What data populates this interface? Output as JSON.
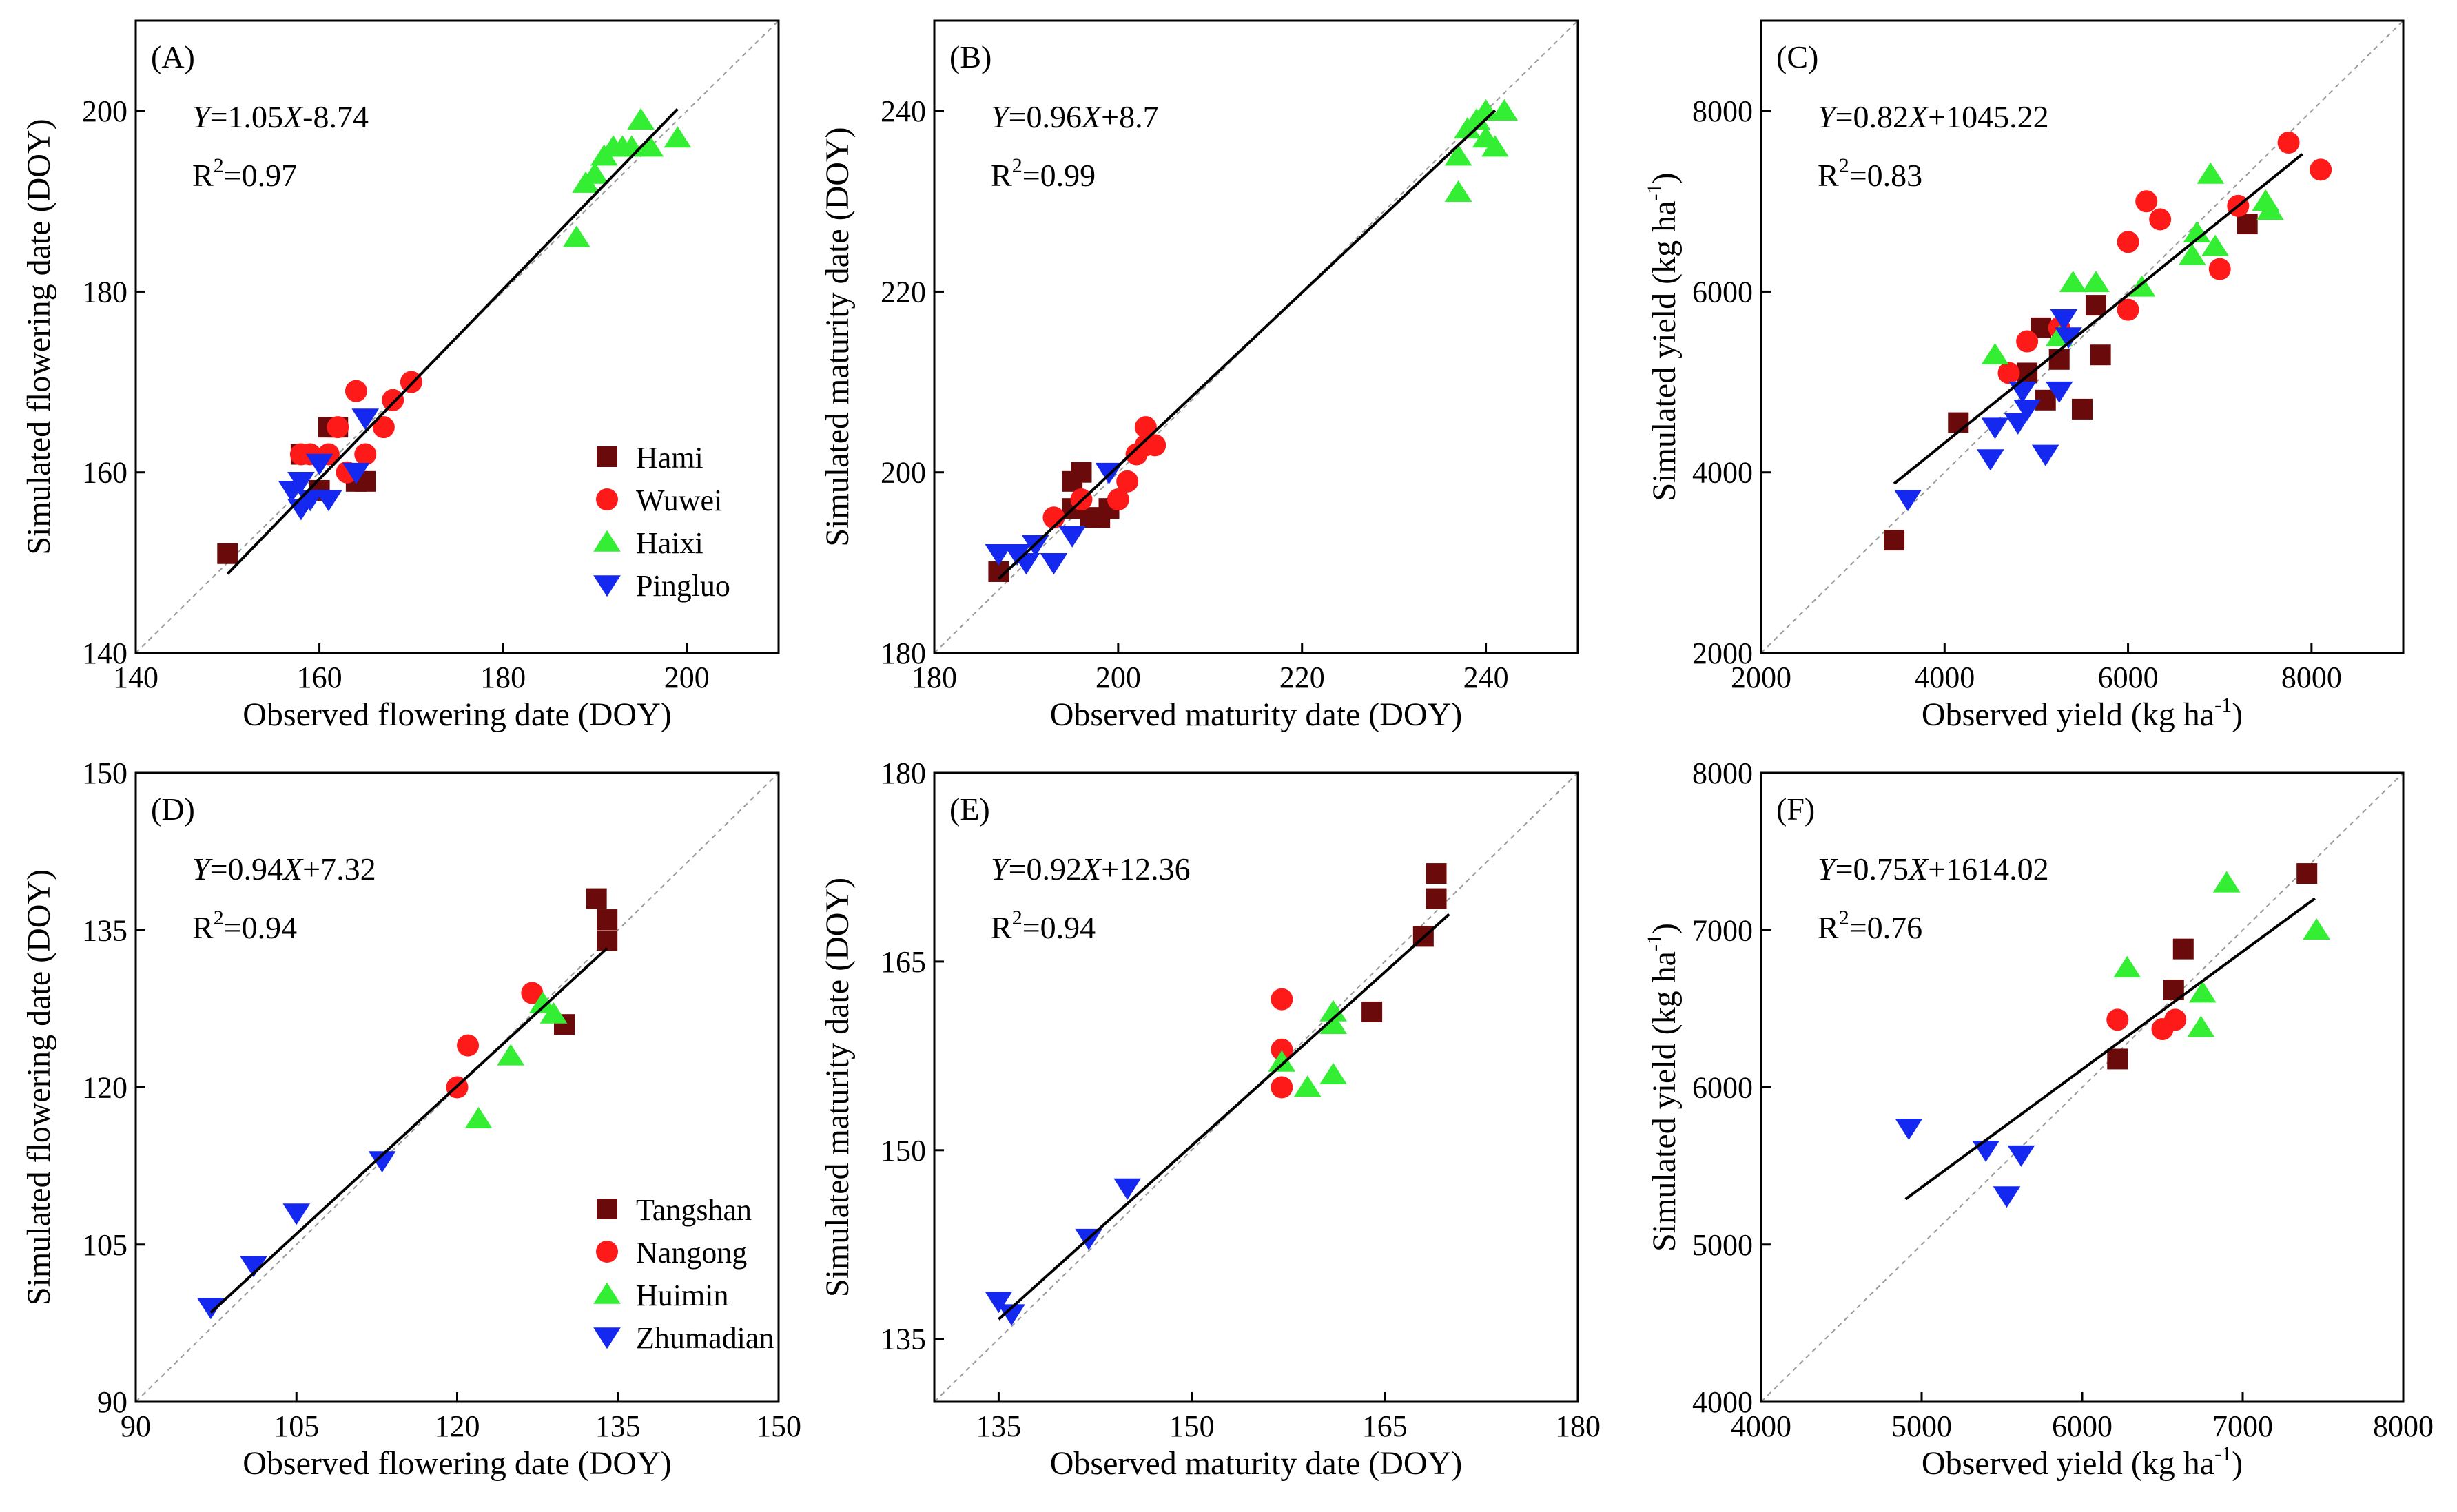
{
  "legend_top": {
    "sites": [
      "Hami",
      "Wuwei",
      "Haixi",
      "Pingluo"
    ]
  },
  "legend_bottom": {
    "sites": [
      "Tangshan",
      "Nangong",
      "Huimin",
      "Zhumadian"
    ]
  },
  "colors": {
    "site1": "#6b0a0a",
    "site2": "#ff1a1a",
    "site3": "#33ee33",
    "site4": "#1428f0",
    "fit": "#000000",
    "one_to_one": "#9a9a9a"
  },
  "chart_data": [
    {
      "id": "A",
      "type": "scatter",
      "panel_label": "(A)",
      "xlabel": "Observed flowering date (DOY)",
      "ylabel": "Simulated flowering date (DOY)",
      "xlim": [
        140,
        210
      ],
      "ylim": [
        140,
        210
      ],
      "xticks": [
        140,
        160,
        180,
        200
      ],
      "yticks": [
        140,
        160,
        180,
        200
      ],
      "eq_y": "Y",
      "eq_mid": "=1.05",
      "eq_x": "X",
      "eq_tail": "-8.74",
      "r2_pre": "R",
      "r2_sup": "2",
      "r2_post": "=0.97",
      "fit": {
        "slope": 1.05,
        "intercept": -8.74,
        "x": [
          150,
          199
        ]
      },
      "legend": "top",
      "series": [
        {
          "name": "Hami",
          "marker": "square",
          "points": [
            [
              150,
              151
            ],
            [
              161,
              165
            ],
            [
              162,
              165
            ],
            [
              164,
              159
            ],
            [
              165,
              159
            ],
            [
              158,
              162
            ],
            [
              160,
              158
            ]
          ]
        },
        {
          "name": "Wuwei",
          "marker": "circle",
          "points": [
            [
              158,
              162
            ],
            [
              159,
              162
            ],
            [
              161,
              162
            ],
            [
              162,
              165
            ],
            [
              164,
              169
            ],
            [
              165,
              162
            ],
            [
              167,
              165
            ],
            [
              168,
              168
            ],
            [
              170,
              170
            ],
            [
              163,
              160
            ]
          ]
        },
        {
          "name": "Haixi",
          "marker": "triangle-up",
          "points": [
            [
              188,
              186
            ],
            [
              189,
              192
            ],
            [
              190,
              193
            ],
            [
              191,
              195
            ],
            [
              192,
              196
            ],
            [
              193,
              196
            ],
            [
              194,
              196
            ],
            [
              195,
              199
            ],
            [
              196,
              196
            ],
            [
              199,
              197
            ]
          ]
        },
        {
          "name": "Pingluo",
          "marker": "triangle-down",
          "points": [
            [
              157,
              158
            ],
            [
              158,
              156
            ],
            [
              159,
              157
            ],
            [
              161,
              157
            ],
            [
              164,
              160
            ],
            [
              165,
              166
            ],
            [
              160,
              161
            ],
            [
              158,
              159
            ]
          ]
        }
      ]
    },
    {
      "id": "B",
      "type": "scatter",
      "panel_label": "(B)",
      "xlabel": "Observed maturity date (DOY)",
      "ylabel": "Simulated maturity date (DOY)",
      "xlim": [
        180,
        250
      ],
      "ylim": [
        180,
        250
      ],
      "xticks": [
        180,
        200,
        220,
        240
      ],
      "yticks": [
        180,
        200,
        220,
        240
      ],
      "eq_y": "Y",
      "eq_mid": "=0.96",
      "eq_x": "X",
      "eq_tail": "+8.7",
      "r2_pre": "R",
      "r2_sup": "2",
      "r2_post": "=0.99",
      "fit": {
        "slope": 0.96,
        "intercept": 8.7,
        "x": [
          187,
          241
        ]
      },
      "legend": "none",
      "series": [
        {
          "name": "Hami",
          "marker": "square",
          "points": [
            [
              187,
              189
            ],
            [
              195,
              199
            ],
            [
              196,
              200
            ],
            [
              195,
              196
            ],
            [
              197,
              195
            ],
            [
              198,
              195
            ],
            [
              199,
              196
            ]
          ]
        },
        {
          "name": "Wuwei",
          "marker": "circle",
          "points": [
            [
              193,
              195
            ],
            [
              196,
              197
            ],
            [
              200,
              197
            ],
            [
              201,
              199
            ],
            [
              202,
              202
            ],
            [
              203,
              203
            ],
            [
              204,
              203
            ],
            [
              203,
              205
            ]
          ]
        },
        {
          "name": "Haixi",
          "marker": "triangle-up",
          "points": [
            [
              237,
              231
            ],
            [
              237,
              235
            ],
            [
              238,
              238
            ],
            [
              239,
              239
            ],
            [
              240,
              240
            ],
            [
              240,
              237
            ],
            [
              241,
              236
            ],
            [
              242,
              240
            ]
          ]
        },
        {
          "name": "Pingluo",
          "marker": "triangle-down",
          "points": [
            [
              187,
              191
            ],
            [
              189,
              191
            ],
            [
              190,
              190
            ],
            [
              191,
              192
            ],
            [
              193,
              190
            ],
            [
              195,
              193
            ],
            [
              199,
              200
            ]
          ]
        }
      ]
    },
    {
      "id": "C",
      "type": "scatter",
      "panel_label": "(C)",
      "xlabel": "Observed yield (kg ha",
      "ylabel": "Simulated yield (kg ha",
      "label_sup": "-1",
      "label_close": ")",
      "xlim": [
        2000,
        9000
      ],
      "ylim": [
        2000,
        9000
      ],
      "xticks": [
        2000,
        4000,
        6000,
        8000
      ],
      "yticks": [
        2000,
        4000,
        6000,
        8000
      ],
      "eq_y": "Y",
      "eq_mid": "=0.82",
      "eq_x": "X",
      "eq_tail": "+1045.22",
      "r2_pre": "R",
      "r2_sup": "2",
      "r2_post": "=0.83",
      "fit": {
        "slope": 0.82,
        "intercept": 1045.22,
        "x": [
          3450,
          7900
        ]
      },
      "legend": "none",
      "series": [
        {
          "name": "Hami",
          "marker": "square",
          "points": [
            [
              3450,
              3250
            ],
            [
              4150,
              4550
            ],
            [
              4900,
              5100
            ],
            [
              5050,
              5600
            ],
            [
              5100,
              4800
            ],
            [
              5250,
              5250
            ],
            [
              5500,
              4700
            ],
            [
              5650,
              5850
            ],
            [
              5700,
              5300
            ],
            [
              7300,
              6750
            ]
          ]
        },
        {
          "name": "Wuwei",
          "marker": "circle",
          "points": [
            [
              4700,
              5100
            ],
            [
              4900,
              5450
            ],
            [
              5250,
              5600
            ],
            [
              6000,
              5800
            ],
            [
              6000,
              6550
            ],
            [
              6200,
              7000
            ],
            [
              6350,
              6800
            ],
            [
              7000,
              6250
            ],
            [
              7200,
              6950
            ],
            [
              7750,
              7650
            ],
            [
              8100,
              7350
            ]
          ]
        },
        {
          "name": "Haixi",
          "marker": "triangle-up",
          "points": [
            [
              4550,
              5300
            ],
            [
              5250,
              5500
            ],
            [
              5400,
              6100
            ],
            [
              5650,
              6100
            ],
            [
              6150,
              6050
            ],
            [
              6700,
              6400
            ],
            [
              6750,
              6650
            ],
            [
              6900,
              7300
            ],
            [
              6950,
              6500
            ],
            [
              7500,
              7000
            ],
            [
              7550,
              6900
            ]
          ]
        },
        {
          "name": "Pingluo",
          "marker": "triangle-down",
          "points": [
            [
              3600,
              3700
            ],
            [
              4500,
              4150
            ],
            [
              4550,
              4500
            ],
            [
              4800,
              4550
            ],
            [
              4850,
              4900
            ],
            [
              5100,
              4200
            ],
            [
              5250,
              4900
            ],
            [
              5300,
              5700
            ],
            [
              5350,
              5500
            ],
            [
              4900,
              4700
            ]
          ]
        }
      ]
    },
    {
      "id": "D",
      "type": "scatter",
      "panel_label": "(D)",
      "xlabel": "Observed flowering date (DOY)",
      "ylabel": "Simulated flowering date (DOY)",
      "xlim": [
        90,
        150
      ],
      "ylim": [
        90,
        150
      ],
      "xticks": [
        90,
        105,
        120,
        135,
        150
      ],
      "yticks": [
        90,
        105,
        120,
        135,
        150
      ],
      "eq_y": "Y",
      "eq_mid": "=0.94",
      "eq_x": "X",
      "eq_tail": "+7.32",
      "r2_pre": "R",
      "r2_sup": "2",
      "r2_post": "=0.94",
      "fit": {
        "slope": 0.94,
        "intercept": 7.32,
        "x": [
          97,
          134
        ]
      },
      "legend": "bottom",
      "series": [
        {
          "name": "Tangshan",
          "marker": "square",
          "points": [
            [
              133,
              138
            ],
            [
              134,
              136
            ],
            [
              134,
              134
            ],
            [
              130,
              126
            ]
          ]
        },
        {
          "name": "Nangong",
          "marker": "circle",
          "points": [
            [
              120,
              120
            ],
            [
              121,
              124
            ],
            [
              127,
              129
            ]
          ]
        },
        {
          "name": "Huimin",
          "marker": "triangle-up",
          "points": [
            [
              122,
              117
            ],
            [
              125,
              123
            ],
            [
              128,
              128
            ],
            [
              129,
              127
            ]
          ]
        },
        {
          "name": "Zhumadian",
          "marker": "triangle-down",
          "points": [
            [
              97,
              99
            ],
            [
              101,
              103
            ],
            [
              105,
              108
            ],
            [
              113,
              113
            ]
          ]
        }
      ]
    },
    {
      "id": "E",
      "type": "scatter",
      "panel_label": "(E)",
      "xlabel": "Observed maturity date (DOY)",
      "ylabel": "Simulated maturity date (DOY)",
      "xlim": [
        130,
        180
      ],
      "ylim": [
        130,
        180
      ],
      "xticks": [
        135,
        150,
        165,
        180
      ],
      "yticks": [
        135,
        150,
        165,
        180
      ],
      "eq_y": "Y",
      "eq_mid": "=0.92",
      "eq_x": "X",
      "eq_tail": "+12.36",
      "r2_pre": "R",
      "r2_sup": "2",
      "r2_post": "=0.94",
      "fit": {
        "slope": 0.92,
        "intercept": 12.36,
        "x": [
          135,
          170
        ]
      },
      "legend": "none",
      "series": [
        {
          "name": "Tangshan",
          "marker": "square",
          "points": [
            [
              164,
              161
            ],
            [
              168,
              167
            ],
            [
              169,
              170
            ],
            [
              169,
              172
            ]
          ]
        },
        {
          "name": "Nangong",
          "marker": "circle",
          "points": [
            [
              157,
              155
            ],
            [
              157,
              158
            ],
            [
              157,
              162
            ]
          ]
        },
        {
          "name": "Huimin",
          "marker": "triangle-up",
          "points": [
            [
              157,
              157
            ],
            [
              159,
              155
            ],
            [
              161,
              160
            ],
            [
              161,
              161
            ],
            [
              161,
              156
            ]
          ]
        },
        {
          "name": "Zhumadian",
          "marker": "triangle-down",
          "points": [
            [
              135,
              138
            ],
            [
              136,
              137
            ],
            [
              142,
              143
            ],
            [
              145,
              147
            ]
          ]
        }
      ]
    },
    {
      "id": "F",
      "type": "scatter",
      "panel_label": "(F)",
      "xlabel": "Observed yield (kg ha",
      "ylabel": "Simulated yield (kg ha",
      "label_sup": "-1",
      "label_close": ")",
      "xlim": [
        4000,
        8000
      ],
      "ylim": [
        4000,
        8000
      ],
      "xticks": [
        4000,
        5000,
        6000,
        7000,
        8000
      ],
      "yticks": [
        4000,
        5000,
        6000,
        7000,
        8000
      ],
      "eq_y": "Y",
      "eq_mid": "=0.75",
      "eq_x": "X",
      "eq_tail": "+1614.02",
      "r2_pre": "R",
      "r2_sup": "2",
      "r2_post": "=0.76",
      "fit": {
        "slope": 0.75,
        "intercept": 1614.02,
        "x": [
          4900,
          7450
        ]
      },
      "legend": "none",
      "series": [
        {
          "name": "Tangshan",
          "marker": "square",
          "points": [
            [
              6220,
              6180
            ],
            [
              6570,
              6620
            ],
            [
              6630,
              6880
            ],
            [
              7400,
              7360
            ]
          ]
        },
        {
          "name": "Nangong",
          "marker": "circle",
          "points": [
            [
              6220,
              6430
            ],
            [
              6500,
              6370
            ],
            [
              6580,
              6430
            ]
          ]
        },
        {
          "name": "Huimin",
          "marker": "triangle-up",
          "points": [
            [
              6280,
              6760
            ],
            [
              6740,
              6380
            ],
            [
              6750,
              6600
            ],
            [
              6900,
              7300
            ],
            [
              7460,
              7000
            ]
          ]
        },
        {
          "name": "Zhumadian",
          "marker": "triangle-down",
          "points": [
            [
              4920,
              5740
            ],
            [
              5400,
              5600
            ],
            [
              5530,
              5310
            ],
            [
              5620,
              5570
            ]
          ]
        }
      ]
    }
  ]
}
